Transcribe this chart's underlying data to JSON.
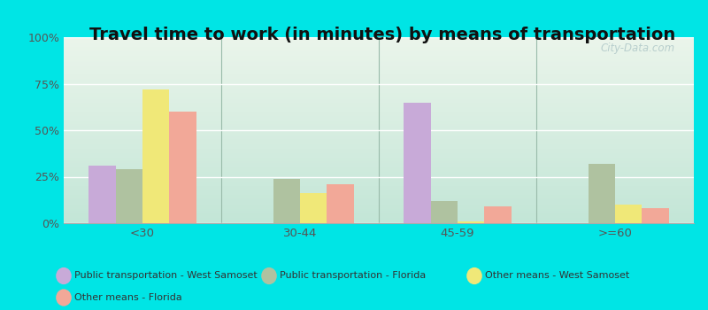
{
  "title": "Travel time to work (in minutes) by means of transportation",
  "categories": [
    "<30",
    "30-44",
    "45-59",
    ">=60"
  ],
  "series": {
    "Public transportation - West Samoset": [
      31,
      0,
      65,
      0
    ],
    "Public transportation - Florida": [
      29,
      24,
      12,
      32
    ],
    "Other means - West Samoset": [
      72,
      16,
      1,
      10
    ],
    "Other means - Florida": [
      60,
      21,
      9,
      8
    ]
  },
  "colors": {
    "Public transportation - West Samoset": "#c8aad8",
    "Public transportation - Florida": "#afc2a0",
    "Other means - West Samoset": "#f0e878",
    "Other means - Florida": "#f2a898"
  },
  "ylim": [
    0,
    100
  ],
  "yticks": [
    0,
    25,
    50,
    75,
    100
  ],
  "yticklabels": [
    "0%",
    "25%",
    "50%",
    "75%",
    "100%"
  ],
  "background_outer": "#00e5e5",
  "grid_color": "#ffffff",
  "title_fontsize": 14,
  "watermark": "City-Data.com"
}
